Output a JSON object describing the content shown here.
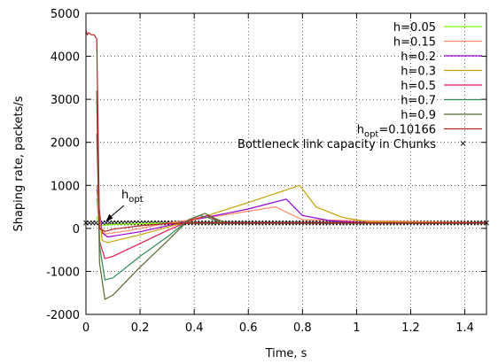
{
  "chart_data": {
    "type": "line",
    "title": "",
    "xlabel": "Time, s",
    "ylabel": "Shaping rate, packets/s",
    "xlim": [
      0,
      1.48
    ],
    "ylim": [
      -2000,
      5000
    ],
    "x_ticks": [
      0,
      0.2,
      0.4,
      0.6,
      0.8,
      1,
      1.2,
      1.4
    ],
    "x_tick_labels": [
      "0",
      "0.2",
      "0.4",
      "0.6",
      "0.8",
      "1",
      "1.2",
      "1.4"
    ],
    "y_ticks": [
      -2000,
      -1000,
      0,
      1000,
      2000,
      3000,
      4000,
      5000
    ],
    "y_tick_labels": [
      "-2000",
      "-1000",
      "0",
      "1000",
      "2000",
      "3000",
      "4000",
      "5000"
    ],
    "grid": true,
    "legend_position": "top-right",
    "series": [
      {
        "name": "h=0.05",
        "color": "#7fff00",
        "x": [
          0.04,
          0.05,
          0.1,
          0.2,
          0.3,
          0.4,
          0.45,
          0.5,
          1.48
        ],
        "y": [
          280,
          60,
          90,
          110,
          120,
          128,
          130,
          128,
          128
        ]
      },
      {
        "name": "h=0.15",
        "color": "#ff8c69",
        "x": [
          0.04,
          0.05,
          0.07,
          0.15,
          0.3,
          0.5,
          0.7,
          0.75,
          0.8,
          1.48
        ],
        "y": [
          700,
          0,
          -130,
          -60,
          120,
          300,
          500,
          350,
          200,
          128
        ]
      },
      {
        "name": "h=0.2",
        "color": "#9400d3",
        "x": [
          0.04,
          0.06,
          0.08,
          0.2,
          0.4,
          0.6,
          0.74,
          0.8,
          0.9,
          1.0,
          1.48
        ],
        "y": [
          900,
          -100,
          -200,
          -80,
          200,
          450,
          680,
          300,
          180,
          140,
          128
        ]
      },
      {
        "name": "h=0.3",
        "color": "#c8a000",
        "x": [
          0.04,
          0.06,
          0.08,
          0.2,
          0.4,
          0.6,
          0.79,
          0.85,
          0.95,
          1.05,
          1.48
        ],
        "y": [
          1000,
          -280,
          -330,
          -150,
          200,
          600,
          1000,
          500,
          250,
          150,
          128
        ]
      },
      {
        "name": "h=0.5",
        "color": "#e41a4a",
        "x": [
          0.04,
          0.05,
          0.07,
          0.1,
          0.2,
          0.3,
          0.4,
          0.45,
          0.5,
          1.48
        ],
        "y": [
          2200,
          -300,
          -700,
          -650,
          -350,
          -50,
          220,
          300,
          130,
          128
        ]
      },
      {
        "name": "h=0.7",
        "color": "#2e8b57",
        "x": [
          0.04,
          0.05,
          0.07,
          0.1,
          0.2,
          0.3,
          0.38,
          0.42,
          0.45,
          0.5,
          1.48
        ],
        "y": [
          3000,
          -400,
          -1200,
          -1150,
          -650,
          -200,
          200,
          300,
          250,
          130,
          128
        ]
      },
      {
        "name": "h=0.9",
        "color": "#556b2f",
        "x": [
          0.04,
          0.05,
          0.07,
          0.1,
          0.2,
          0.3,
          0.38,
          0.44,
          0.48,
          0.52,
          1.48
        ],
        "y": [
          3200,
          -800,
          -1650,
          -1550,
          -900,
          -300,
          200,
          350,
          220,
          130,
          128
        ]
      },
      {
        "name": "h_opt=0.10166",
        "legend_main": "h",
        "legend_sub": "opt",
        "legend_tail": "=0.10166",
        "color": "#b22222",
        "x": [
          0,
          0.005,
          0.01,
          0.02,
          0.03,
          0.04,
          0.05,
          0.07,
          0.1,
          0.2,
          0.3,
          0.4,
          0.45,
          0.5,
          1.48
        ],
        "y": [
          4600,
          4500,
          4550,
          4500,
          4500,
          4400,
          0,
          -70,
          -20,
          60,
          110,
          128,
          130,
          128,
          128
        ]
      }
    ],
    "capacity": {
      "name": "Bottleneck link capacity in Chunks",
      "color": "#000000",
      "value": 128,
      "x_start": 0,
      "x_end": 1.48,
      "count": 120
    },
    "annotation": {
      "main": "h",
      "sub": "opt",
      "x": 0.07,
      "y": 130
    }
  }
}
